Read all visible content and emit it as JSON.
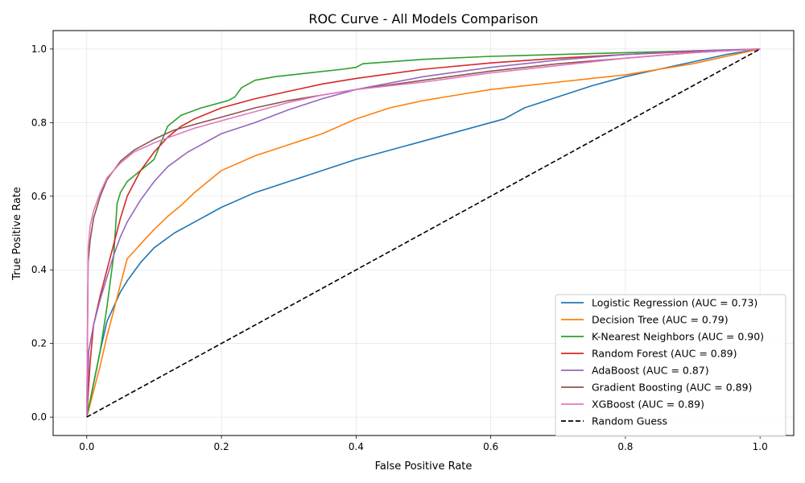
{
  "chart_data": {
    "type": "line",
    "title": "ROC Curve - All Models Comparison",
    "xlabel": "False Positive Rate",
    "ylabel": "True Positive Rate",
    "xlim": [
      -0.05,
      1.05
    ],
    "ylim": [
      -0.05,
      1.05
    ],
    "xticks": [
      "0.0",
      "0.2",
      "0.4",
      "0.6",
      "0.8",
      "1.0"
    ],
    "yticks": [
      "0.0",
      "0.2",
      "0.4",
      "0.6",
      "0.8",
      "1.0"
    ],
    "grid": true,
    "legend_position": "lower-right",
    "series": [
      {
        "name": "Logistic Regression (AUC = 0.73)",
        "color": "#1f77b4",
        "x": [
          0,
          0.02,
          0.03,
          0.04,
          0.05,
          0.06,
          0.08,
          0.1,
          0.13,
          0.16,
          0.2,
          0.25,
          0.3,
          0.35,
          0.4,
          0.5,
          0.6,
          0.62,
          0.65,
          0.7,
          0.75,
          0.8,
          0.85,
          0.9,
          0.95,
          1.0
        ],
        "y": [
          0,
          0.18,
          0.26,
          0.3,
          0.34,
          0.37,
          0.42,
          0.46,
          0.5,
          0.53,
          0.57,
          0.61,
          0.64,
          0.67,
          0.7,
          0.75,
          0.8,
          0.81,
          0.84,
          0.87,
          0.9,
          0.925,
          0.945,
          0.965,
          0.985,
          1.0
        ]
      },
      {
        "name": "Decision Tree (AUC = 0.79)",
        "color": "#ff7f0e",
        "x": [
          0,
          0.02,
          0.03,
          0.04,
          0.05,
          0.06,
          0.08,
          0.1,
          0.12,
          0.14,
          0.16,
          0.2,
          0.25,
          0.3,
          0.35,
          0.4,
          0.45,
          0.5,
          0.55,
          0.6,
          0.65,
          0.7,
          0.75,
          0.8,
          0.9,
          1.0
        ],
        "y": [
          0,
          0.14,
          0.22,
          0.29,
          0.36,
          0.43,
          0.47,
          0.51,
          0.545,
          0.575,
          0.61,
          0.67,
          0.71,
          0.74,
          0.77,
          0.81,
          0.84,
          0.86,
          0.875,
          0.89,
          0.9,
          0.91,
          0.92,
          0.93,
          0.96,
          1.0
        ]
      },
      {
        "name": "K-Nearest Neighbors (AUC = 0.90)",
        "color": "#2ca02c",
        "x": [
          0,
          0.02,
          0.03,
          0.04,
          0.045,
          0.05,
          0.06,
          0.08,
          0.1,
          0.12,
          0.14,
          0.17,
          0.21,
          0.22,
          0.23,
          0.25,
          0.28,
          0.33,
          0.38,
          0.4,
          0.41,
          0.5,
          0.6,
          0.7,
          0.8,
          0.9,
          1.0
        ],
        "y": [
          0,
          0.18,
          0.3,
          0.44,
          0.58,
          0.61,
          0.64,
          0.67,
          0.7,
          0.79,
          0.82,
          0.84,
          0.86,
          0.87,
          0.895,
          0.915,
          0.925,
          0.935,
          0.945,
          0.95,
          0.96,
          0.972,
          0.98,
          0.985,
          0.99,
          0.995,
          1.0
        ]
      },
      {
        "name": "Random Forest (AUC = 0.89)",
        "color": "#d62728",
        "x": [
          0,
          0.005,
          0.01,
          0.02,
          0.03,
          0.04,
          0.05,
          0.06,
          0.08,
          0.1,
          0.12,
          0.14,
          0.16,
          0.2,
          0.25,
          0.3,
          0.35,
          0.4,
          0.5,
          0.6,
          0.7,
          0.8,
          0.9,
          1.0
        ],
        "y": [
          0,
          0.15,
          0.25,
          0.33,
          0.4,
          0.47,
          0.54,
          0.6,
          0.67,
          0.72,
          0.76,
          0.79,
          0.81,
          0.84,
          0.865,
          0.885,
          0.905,
          0.92,
          0.945,
          0.962,
          0.975,
          0.985,
          0.993,
          1.0
        ]
      },
      {
        "name": "AdaBoost (AUC = 0.87)",
        "color": "#9467bd",
        "x": [
          0,
          0.003,
          0.01,
          0.02,
          0.03,
          0.04,
          0.05,
          0.06,
          0.08,
          0.1,
          0.12,
          0.15,
          0.2,
          0.25,
          0.3,
          0.35,
          0.4,
          0.5,
          0.6,
          0.7,
          0.8,
          0.9,
          1.0
        ],
        "y": [
          0,
          0.18,
          0.25,
          0.32,
          0.38,
          0.44,
          0.49,
          0.53,
          0.59,
          0.64,
          0.68,
          0.72,
          0.77,
          0.8,
          0.835,
          0.865,
          0.89,
          0.925,
          0.95,
          0.97,
          0.985,
          0.995,
          1.0
        ]
      },
      {
        "name": "Gradient Boosting (AUC = 0.89)",
        "color": "#8c564b",
        "x": [
          0,
          0.002,
          0.005,
          0.01,
          0.02,
          0.03,
          0.05,
          0.07,
          0.1,
          0.13,
          0.16,
          0.2,
          0.25,
          0.3,
          0.35,
          0.4,
          0.5,
          0.6,
          0.7,
          0.8,
          0.9,
          1.0
        ],
        "y": [
          0,
          0.42,
          0.48,
          0.54,
          0.6,
          0.645,
          0.695,
          0.725,
          0.755,
          0.78,
          0.795,
          0.815,
          0.84,
          0.86,
          0.875,
          0.89,
          0.915,
          0.94,
          0.96,
          0.975,
          0.99,
          1.0
        ]
      },
      {
        "name": "XGBoost (AUC = 0.89)",
        "color": "#e377c2",
        "x": [
          0,
          0.002,
          0.005,
          0.01,
          0.02,
          0.03,
          0.05,
          0.07,
          0.1,
          0.13,
          0.16,
          0.2,
          0.25,
          0.3,
          0.35,
          0.4,
          0.5,
          0.6,
          0.7,
          0.8,
          0.9,
          1.0
        ],
        "y": [
          0,
          0.46,
          0.52,
          0.56,
          0.61,
          0.65,
          0.69,
          0.72,
          0.745,
          0.765,
          0.785,
          0.805,
          0.83,
          0.855,
          0.875,
          0.89,
          0.91,
          0.935,
          0.955,
          0.975,
          0.99,
          1.0
        ]
      },
      {
        "name": "Random Guess",
        "color": "#000000",
        "dashed": true,
        "x": [
          0,
          1
        ],
        "y": [
          0,
          1
        ]
      }
    ]
  }
}
